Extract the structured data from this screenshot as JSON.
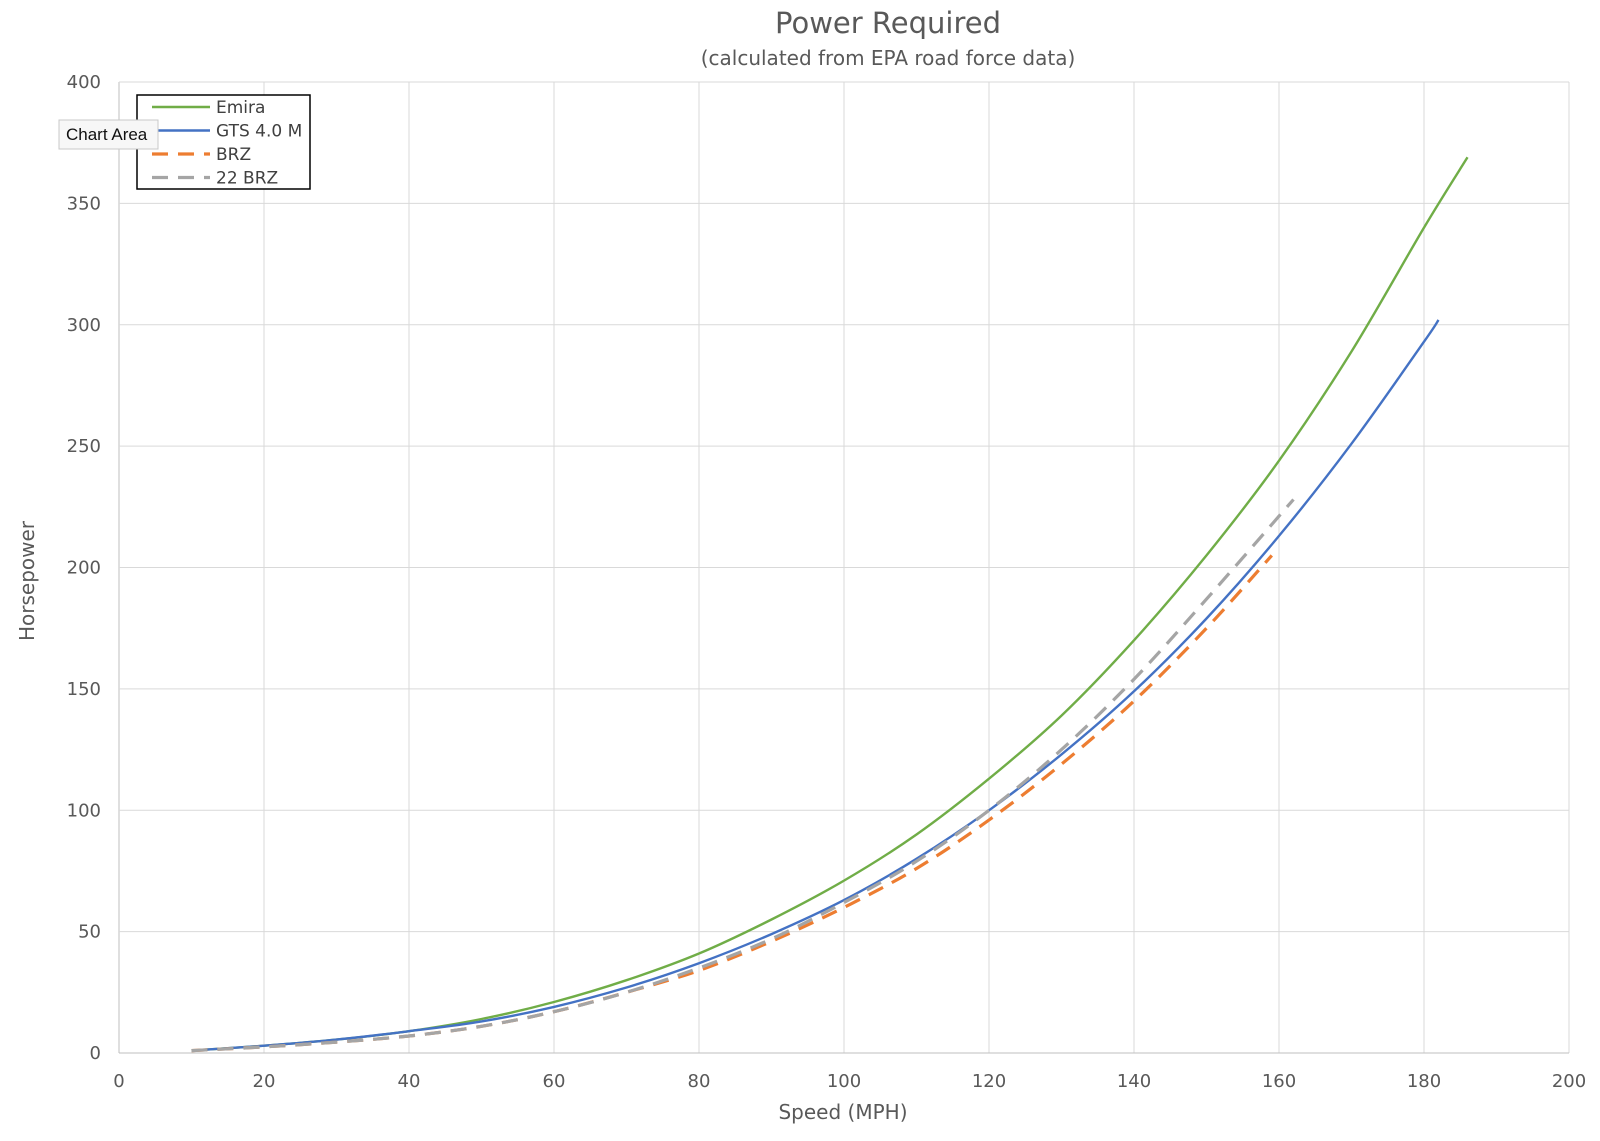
{
  "tooltip": {
    "label": "Chart Area"
  },
  "chart_data": {
    "type": "line",
    "title": "Power Required",
    "subtitle": "(calculated from EPA road force data)",
    "xlabel": "Speed (MPH)",
    "ylabel": "Horsepower",
    "xlim": [
      0,
      200
    ],
    "ylim": [
      0,
      400
    ],
    "xticks": [
      0,
      20,
      40,
      60,
      80,
      100,
      120,
      140,
      160,
      180,
      200
    ],
    "yticks": [
      0,
      50,
      100,
      150,
      200,
      250,
      300,
      350,
      400
    ],
    "grid": true,
    "legend_position": "top-left",
    "series": [
      {
        "name": "Emira",
        "color": "#70ad47",
        "dash": "solid",
        "x": [
          10,
          20,
          30,
          40,
          50,
          60,
          70,
          80,
          90,
          100,
          110,
          120,
          130,
          140,
          150,
          160,
          170,
          180,
          186
        ],
        "y": [
          1,
          3,
          5.5,
          9,
          14,
          21,
          30,
          41,
          55,
          71,
          90,
          113,
          139,
          170,
          205,
          244,
          289,
          340,
          369
        ]
      },
      {
        "name": "GTS 4.0 M",
        "color": "#4472c4",
        "dash": "solid",
        "x": [
          10,
          20,
          30,
          40,
          50,
          60,
          70,
          80,
          90,
          100,
          110,
          120,
          130,
          140,
          150,
          160,
          170,
          180,
          182
        ],
        "y": [
          1,
          3,
          5.5,
          9,
          13,
          19,
          27,
          37,
          49,
          63,
          80,
          100,
          123,
          149,
          179,
          213,
          251,
          293,
          302
        ]
      },
      {
        "name": "BRZ",
        "color": "#ed7d31",
        "dash": "dashed",
        "x": [
          10,
          20,
          30,
          40,
          50,
          60,
          70,
          80,
          90,
          100,
          110,
          120,
          130,
          140,
          150,
          159
        ],
        "y": [
          1,
          2.5,
          4.5,
          7,
          11,
          17,
          25,
          34,
          46,
          60,
          76,
          96,
          119,
          145,
          175,
          205
        ]
      },
      {
        "name": "22 BRZ",
        "color": "#a5a5a5",
        "dash": "dashed",
        "x": [
          10,
          20,
          30,
          40,
          50,
          60,
          70,
          80,
          90,
          100,
          110,
          120,
          130,
          140,
          150,
          162
        ],
        "y": [
          1,
          2.5,
          4.5,
          7,
          11,
          17,
          25,
          35,
          47,
          62,
          79,
          100,
          125,
          154,
          187,
          228
        ]
      }
    ]
  }
}
